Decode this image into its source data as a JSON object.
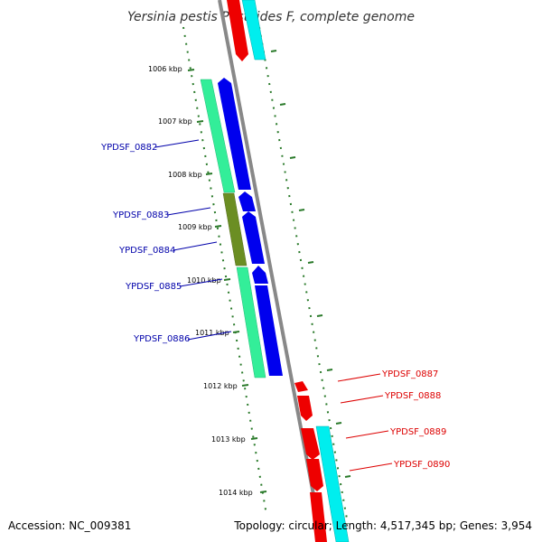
{
  "title": "Yersinia pestis Pestoides F, complete genome",
  "accession": "Accession: NC_009381",
  "summary": "Topology: circular; Length: 4,517,345 bp; Genes: 3,954",
  "colors": {
    "backbone": "#888888",
    "ticks": "#2a7a2a",
    "forward_label": "#0000aa",
    "reverse_label": "#dd0000",
    "cds_blue": "#0000ee",
    "cds_red": "#ee0000",
    "cog_green": "#33ee99",
    "cog_olive": "#6b8e23",
    "cog_cyan": "#00eeee"
  },
  "kbp_labels": [
    {
      "text": "1006 kbp"
    },
    {
      "text": "1007 kbp"
    },
    {
      "text": "1008 kbp"
    },
    {
      "text": "1009 kbp"
    },
    {
      "text": "1010 kbp"
    },
    {
      "text": "1011 kbp"
    },
    {
      "text": "1012 kbp"
    },
    {
      "text": "1013 kbp"
    },
    {
      "text": "1014 kbp"
    }
  ],
  "forward_genes": [
    {
      "name": "YPDSF_0882"
    },
    {
      "name": "YPDSF_0883"
    },
    {
      "name": "YPDSF_0884"
    },
    {
      "name": "YPDSF_0885"
    },
    {
      "name": "YPDSF_0886"
    }
  ],
  "reverse_genes": [
    {
      "name": "YPDSF_0887"
    },
    {
      "name": "YPDSF_0888"
    },
    {
      "name": "YPDSF_0889"
    },
    {
      "name": "YPDSF_0890"
    }
  ]
}
